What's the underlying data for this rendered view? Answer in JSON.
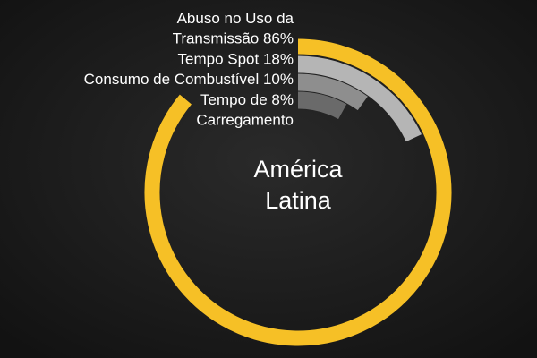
{
  "chart_data": {
    "type": "radial-bar",
    "center_label": [
      "América",
      "Latina"
    ],
    "categories": [
      [
        "Abuso no Uso da",
        "Transmissão"
      ],
      [
        "Tempo Spot"
      ],
      [
        "Consumo de Combustível"
      ],
      [
        "Tempo de",
        "Carregamento"
      ]
    ],
    "values": [
      86,
      18,
      10,
      8
    ],
    "value_labels": [
      "86%",
      "18%",
      "10%",
      "8%"
    ],
    "colors": [
      "#f6c026",
      "#b5b5b5",
      "#8e8e8e",
      "#6a6a6a"
    ],
    "ylim": [
      0,
      100
    ]
  }
}
